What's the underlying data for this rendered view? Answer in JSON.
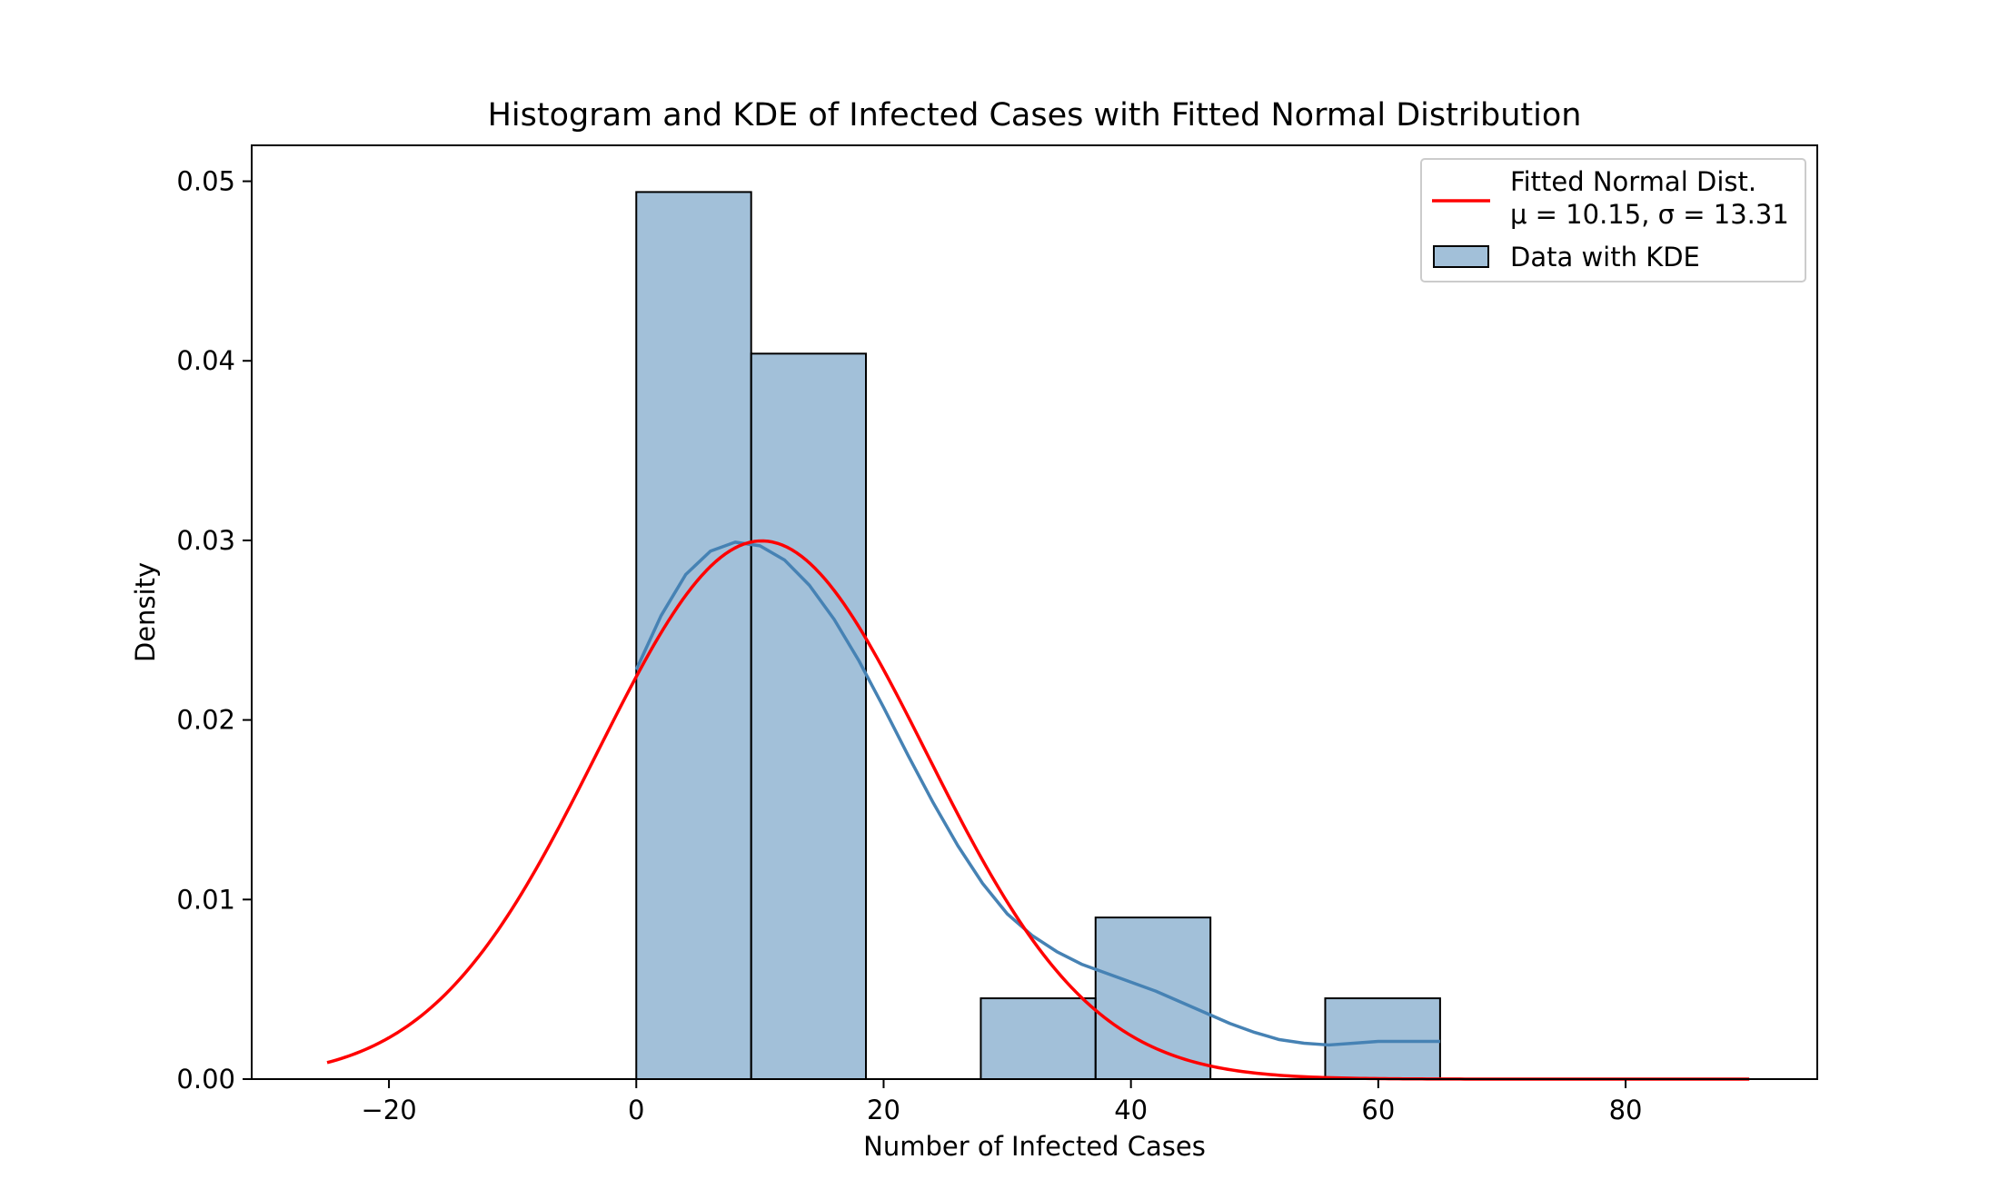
{
  "chart_data": {
    "type": "bar",
    "title": "Histogram and KDE of Infected Cases with Fitted Normal Distribution",
    "xlabel": "Number of Infected Cases",
    "ylabel": "Density",
    "xlim": [
      -31.1,
      95.5
    ],
    "ylim": [
      0,
      0.052
    ],
    "xticks": [
      -20,
      0,
      20,
      40,
      60,
      80
    ],
    "xtick_labels": [
      "−20",
      "0",
      "20",
      "40",
      "60",
      "80"
    ],
    "yticks": [
      0.0,
      0.01,
      0.02,
      0.03,
      0.04,
      0.05
    ],
    "ytick_labels": [
      "0.00",
      "0.01",
      "0.02",
      "0.03",
      "0.04",
      "0.05"
    ],
    "grid": false,
    "legend_position": "top-right",
    "histogram": {
      "name": "Data with KDE",
      "color": "#4682b4",
      "bins": [
        {
          "x0": 0.0,
          "x1": 9.29,
          "density": 0.0494
        },
        {
          "x0": 9.29,
          "x1": 18.57,
          "density": 0.0404
        },
        {
          "x0": 18.57,
          "x1": 27.86,
          "density": 0.0
        },
        {
          "x0": 27.86,
          "x1": 37.14,
          "density": 0.0045
        },
        {
          "x0": 37.14,
          "x1": 46.43,
          "density": 0.009
        },
        {
          "x0": 46.43,
          "x1": 55.71,
          "density": 0.0
        },
        {
          "x0": 55.71,
          "x1": 65.0,
          "density": 0.0045
        }
      ]
    },
    "kde": {
      "color": "#4682b4",
      "x": [
        0,
        2,
        4,
        6,
        8,
        10,
        12,
        14,
        16,
        18,
        20,
        22,
        24,
        26,
        28,
        30,
        32,
        34,
        36,
        38,
        40,
        42,
        44,
        46,
        48,
        50,
        52,
        54,
        56,
        58,
        60,
        62,
        65
      ],
      "y": [
        0.0228,
        0.0258,
        0.0281,
        0.0294,
        0.0299,
        0.0297,
        0.0289,
        0.0275,
        0.0256,
        0.0233,
        0.0207,
        0.018,
        0.0154,
        0.013,
        0.0109,
        0.0092,
        0.008,
        0.0071,
        0.0064,
        0.0059,
        0.0054,
        0.0049,
        0.0043,
        0.0037,
        0.0031,
        0.0026,
        0.0022,
        0.002,
        0.0019,
        0.002,
        0.0021,
        0.0021,
        0.0021
      ]
    },
    "normal_fit": {
      "name": "Fitted Normal Dist.",
      "params_label": "μ = 10.15, σ = 13.31",
      "mu": 10.15,
      "sigma": 13.31,
      "x_range": [
        -25,
        90
      ],
      "color": "#ff0000"
    }
  }
}
